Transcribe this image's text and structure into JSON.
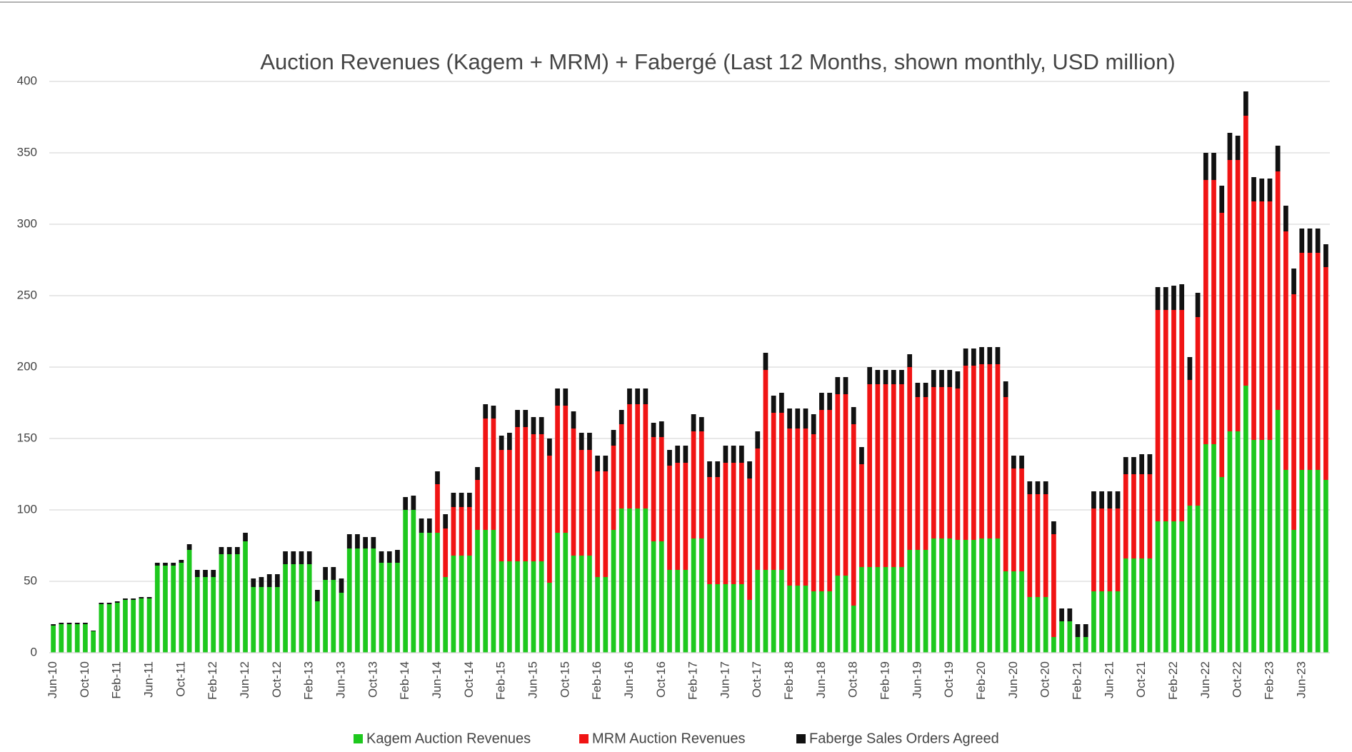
{
  "chart_data": {
    "type": "stacked_bar",
    "title": "Auction Revenues (Kagem + MRM) + Fabergé (Last 12 Months, shown monthly, USD million)",
    "categories": [
      "Jun-10",
      null,
      null,
      null,
      "Oct-10",
      null,
      null,
      null,
      "Feb-11",
      null,
      null,
      null,
      "Jun-11",
      null,
      null,
      null,
      "Oct-11",
      null,
      null,
      null,
      "Feb-12",
      null,
      null,
      null,
      "Jun-12",
      null,
      null,
      null,
      "Oct-12",
      null,
      null,
      null,
      "Feb-13",
      null,
      null,
      null,
      "Jun-13",
      null,
      null,
      null,
      "Oct-13",
      null,
      null,
      null,
      "Feb-14",
      null,
      null,
      null,
      "Jun-14",
      null,
      null,
      null,
      "Oct-14",
      null,
      null,
      null,
      "Feb-15",
      null,
      null,
      null,
      "Jun-15",
      null,
      null,
      null,
      "Oct-15",
      null,
      null,
      null,
      "Feb-16",
      null,
      null,
      null,
      "Jun-16",
      null,
      null,
      null,
      "Oct-16",
      null,
      null,
      null,
      "Feb-17",
      null,
      null,
      null,
      "Jun-17",
      null,
      null,
      null,
      "Oct-17",
      null,
      null,
      null,
      "Feb-18",
      null,
      null,
      null,
      "Jun-18",
      null,
      null,
      null,
      "Oct-18",
      null,
      null,
      null,
      "Feb-19",
      null,
      null,
      null,
      "Jun-19",
      null,
      null,
      null,
      "Oct-19",
      null,
      null,
      null,
      "Feb-20",
      null,
      null,
      null,
      "Jun-20",
      null,
      null,
      null,
      "Oct-20",
      null,
      null,
      null,
      "Feb-21",
      null,
      null,
      null,
      "Jun-21",
      null,
      null,
      null,
      "Oct-21",
      null,
      null,
      null,
      "Feb-22",
      null,
      null,
      null,
      "Jun-22",
      null,
      null,
      null,
      "Oct-22",
      null,
      null,
      null,
      "Feb-23",
      null,
      null,
      null,
      "Jun-23",
      null,
      null,
      null
    ],
    "series": [
      {
        "name": "Kagem Auction Revenues",
        "color": "#1ec81e",
        "values": [
          19,
          20,
          20,
          20,
          20,
          15,
          34,
          34,
          35,
          37,
          37,
          38,
          38,
          61,
          61,
          61,
          63,
          72,
          53,
          53,
          53,
          69,
          69,
          69,
          78,
          46,
          46,
          46,
          46,
          62,
          62,
          62,
          62,
          36,
          51,
          51,
          42,
          73,
          73,
          73,
          73,
          63,
          63,
          63,
          100,
          100,
          84,
          84,
          84,
          53,
          68,
          68,
          68,
          86,
          86,
          86,
          64,
          64,
          64,
          64,
          64,
          64,
          49,
          84,
          84,
          68,
          68,
          68,
          53,
          53,
          86,
          101,
          101,
          101,
          101,
          78,
          78,
          58,
          58,
          58,
          80,
          80,
          48,
          48,
          48,
          48,
          48,
          37,
          58,
          58,
          58,
          58,
          47,
          47,
          47,
          43,
          43,
          43,
          54,
          54,
          33,
          60,
          60,
          60,
          60,
          60,
          60,
          72,
          72,
          72,
          80,
          80,
          80,
          79,
          79,
          79,
          80,
          80,
          80,
          57,
          57,
          57,
          39,
          39,
          39,
          11,
          22,
          22,
          11,
          11,
          43,
          43,
          43,
          43,
          66,
          66,
          66,
          66,
          92,
          92,
          92,
          92,
          103,
          103,
          146,
          146,
          123,
          155,
          155,
          187,
          149,
          149,
          149,
          170,
          128,
          86,
          128,
          128,
          128,
          121
        ]
      },
      {
        "name": "MRM Auction Revenues",
        "color": "#f01414",
        "values": [
          0,
          0,
          0,
          0,
          0,
          0,
          0,
          0,
          0,
          0,
          0,
          0,
          0,
          0,
          0,
          0,
          0,
          0,
          0,
          0,
          0,
          0,
          0,
          0,
          0,
          0,
          0,
          0,
          0,
          0,
          0,
          0,
          0,
          0,
          0,
          0,
          0,
          0,
          0,
          0,
          0,
          0,
          0,
          0,
          0,
          0,
          0,
          0,
          34,
          34,
          34,
          34,
          34,
          35,
          78,
          78,
          78,
          78,
          94,
          94,
          89,
          89,
          89,
          89,
          89,
          89,
          74,
          74,
          74,
          74,
          59,
          59,
          73,
          73,
          73,
          73,
          73,
          73,
          75,
          75,
          75,
          75,
          75,
          75,
          85,
          85,
          85,
          85,
          85,
          140,
          110,
          110,
          110,
          110,
          110,
          110,
          127,
          127,
          127,
          127,
          127,
          72,
          128,
          128,
          128,
          128,
          128,
          128,
          107,
          107,
          106,
          106,
          106,
          106,
          122,
          122,
          122,
          122,
          122,
          122,
          72,
          72,
          72,
          72,
          72,
          72,
          0,
          0,
          0,
          0,
          58,
          58,
          58,
          58,
          59,
          59,
          59,
          59,
          148,
          148,
          148,
          148,
          88,
          132,
          185,
          185,
          185,
          190,
          190,
          189,
          167,
          167,
          167,
          167,
          167,
          165,
          152,
          152,
          152,
          149
        ]
      },
      {
        "name": "Faberge Sales Orders Agreed",
        "color": "#111111",
        "values": [
          1,
          1,
          1,
          1,
          1,
          0.5,
          1,
          1,
          1,
          1,
          1,
          1,
          1,
          2,
          2,
          2,
          2,
          4,
          5,
          5,
          5,
          5,
          5,
          5,
          6,
          6,
          7,
          9,
          9,
          9,
          9,
          9,
          9,
          8,
          9,
          9,
          10,
          10,
          10,
          8,
          8,
          8,
          8,
          9,
          9,
          10,
          10,
          10,
          9,
          10,
          10,
          10,
          10,
          9,
          10,
          9,
          10,
          12,
          12,
          12,
          12,
          12,
          12,
          12,
          12,
          12,
          12,
          12,
          11,
          11,
          11,
          10,
          11,
          11,
          11,
          10,
          11,
          11,
          12,
          12,
          12,
          10,
          11,
          11,
          12,
          12,
          12,
          12,
          12,
          12,
          12,
          14,
          14,
          14,
          14,
          14,
          12,
          12,
          12,
          12,
          12,
          12,
          12,
          10,
          10,
          10,
          10,
          9,
          10,
          10,
          12,
          12,
          12,
          12,
          12,
          12,
          12,
          12,
          12,
          11,
          9,
          9,
          9,
          9,
          9,
          9,
          9,
          9,
          9,
          9,
          12,
          12,
          12,
          12,
          12,
          12,
          14,
          14,
          16,
          16,
          17,
          18,
          16,
          17,
          19,
          19,
          19,
          19,
          17,
          17,
          17,
          16,
          16,
          18,
          18,
          18,
          17,
          17,
          17,
          16
        ]
      }
    ],
    "ylim": [
      0,
      400
    ],
    "yticks": [
      0,
      50,
      100,
      150,
      200,
      250,
      300,
      350,
      400
    ],
    "grid": true,
    "legend": "bottom"
  }
}
